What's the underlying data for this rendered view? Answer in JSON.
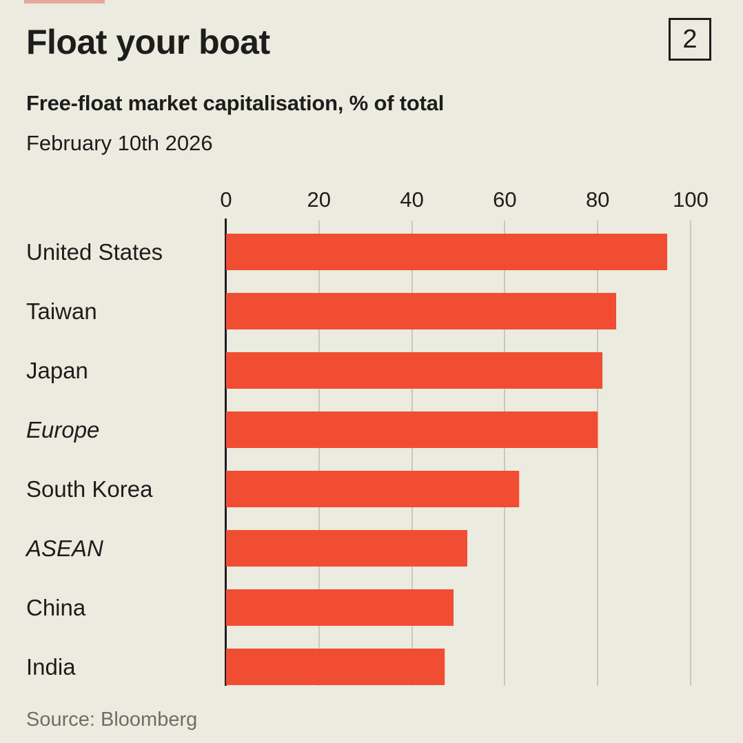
{
  "header": {
    "title": "Float your boat",
    "index_label": "2",
    "subtitle": "Free-float market capitalisation, % of total",
    "date": "February 10th 2026"
  },
  "chart_data": {
    "type": "bar",
    "orientation": "horizontal",
    "title": "Float your boat",
    "subtitle": "Free-float market capitalisation, % of total",
    "date": "February 10th 2026",
    "categories": [
      "United States",
      "Taiwan",
      "Japan",
      "Europe",
      "South Korea",
      "ASEAN",
      "China",
      "India"
    ],
    "values": [
      95,
      84,
      81,
      80,
      63,
      52,
      49,
      47
    ],
    "italic_categories": [
      "Europe",
      "ASEAN"
    ],
    "x_ticks": [
      0,
      20,
      40,
      60,
      80,
      100
    ],
    "xlim": [
      0,
      100
    ],
    "xlabel": "% of total",
    "grid": true,
    "legend": false,
    "axis_position": "top"
  },
  "footer": {
    "source": "Source: Bloomberg"
  },
  "colors": {
    "background": "#ECEBE0",
    "bar": "#F04D33",
    "text": "#1D1D1B",
    "gridline": "#C9C8BD",
    "axis": "#1D1D1B",
    "source_text": "#6F6E66",
    "red_tab": "#E8A59D"
  }
}
